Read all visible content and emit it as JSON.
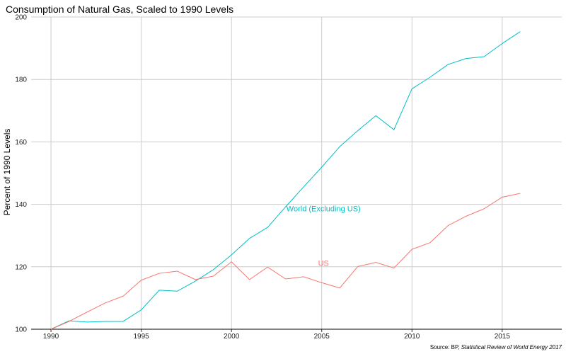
{
  "chart_data": {
    "type": "line",
    "title": "Consumption of Natural Gas, Scaled to 1990 Levels",
    "xlabel": "",
    "ylabel": "Percent of 1990 Levels",
    "xlim": [
      1988.9,
      2018.3
    ],
    "ylim": [
      100,
      200
    ],
    "x_ticks": [
      1990,
      1995,
      2000,
      2005,
      2010,
      2015
    ],
    "y_ticks": [
      100,
      120,
      140,
      160,
      180,
      200
    ],
    "grid": true,
    "x": [
      1990,
      1991,
      1992,
      1993,
      1994,
      1995,
      1996,
      1997,
      1998,
      1999,
      2000,
      2001,
      2002,
      2003,
      2004,
      2005,
      2006,
      2007,
      2008,
      2009,
      2010,
      2011,
      2012,
      2013,
      2014,
      2015,
      2016
    ],
    "series": [
      {
        "name": "World (Excluding US)",
        "color": "#00BFC4",
        "values": [
          100.0,
          102.7,
          102.3,
          102.5,
          102.5,
          106.2,
          112.5,
          112.2,
          115.4,
          119.1,
          123.8,
          129.1,
          132.6,
          139.2,
          145.6,
          151.9,
          158.5,
          163.6,
          168.4,
          163.9,
          177.0,
          180.7,
          184.8,
          186.7,
          187.3,
          191.5,
          195.3
        ]
      },
      {
        "name": "US",
        "color": "#F8766D",
        "values": [
          100.0,
          102.5,
          105.5,
          108.4,
          110.6,
          115.7,
          117.9,
          118.6,
          115.9,
          117.0,
          121.6,
          115.9,
          119.9,
          116.1,
          116.8,
          114.9,
          113.2,
          120.1,
          121.4,
          119.6,
          125.6,
          127.7,
          133.2,
          136.2,
          138.6,
          142.3,
          143.5
        ]
      }
    ],
    "annotations": [
      {
        "text": "World (Excluding US)",
        "x": 2005.1,
        "y": 137.7,
        "color": "#00BFC4"
      },
      {
        "text": "US",
        "x": 2005.1,
        "y": 120.3,
        "color": "#F8766D"
      }
    ],
    "source": {
      "prefix": "Source: BP, ",
      "italic": "Statistical Review of World Energy 2017"
    }
  }
}
